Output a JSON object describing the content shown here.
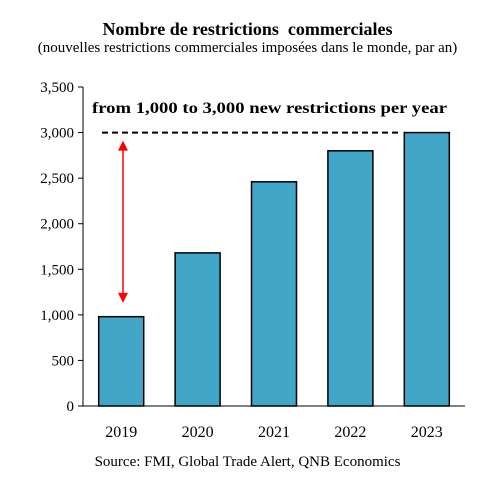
{
  "chart_data": {
    "type": "bar",
    "title": "Nombre de restrictions  commerciales",
    "subtitle": "(nouvelles restrictions commerciales imposées dans le monde, par an)",
    "source": "Source: FMI, Global Trade Alert, QNB Economics",
    "categories": [
      "2019",
      "2020",
      "2021",
      "2022",
      "2023"
    ],
    "values": [
      980,
      1680,
      2460,
      2800,
      3000
    ],
    "ylim": [
      0,
      3500
    ],
    "yticks": [
      0,
      500,
      1000,
      1500,
      2000,
      2500,
      3000,
      3500
    ],
    "ytick_labels": [
      "0",
      "500",
      "1,000",
      "1,500",
      "2,000",
      "2,500",
      "3,000",
      "3,500"
    ],
    "grid": false,
    "legend": "none",
    "bar_color": "#41A6C8",
    "bar_edge_color": "#000000",
    "annotations": {
      "text": "from 1,000 to 3,000 new restrictions per year",
      "reference_line_value": 3000,
      "reference_line_style": "dashed",
      "arrow": {
        "from_value": 1000,
        "to_value": 3000,
        "color": "#FF0000"
      }
    }
  }
}
